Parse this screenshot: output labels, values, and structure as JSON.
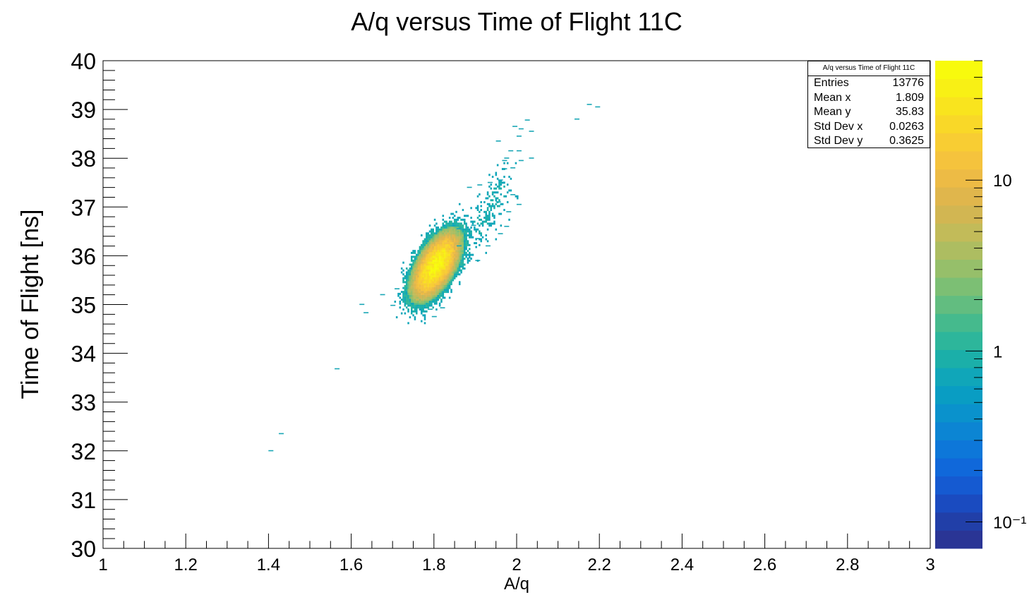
{
  "chart_data": {
    "type": "heatmap",
    "title": "A/q versus Time of Flight 11C",
    "xlabel": "A/q",
    "ylabel": "Time of Flight [ns]",
    "xlim": [
      1,
      3
    ],
    "ylim": [
      30,
      40
    ],
    "x_ticks": [
      "1",
      "1.2",
      "1.4",
      "1.6",
      "1.8",
      "2",
      "2.2",
      "2.4",
      "2.6",
      "2.8",
      "3"
    ],
    "y_ticks": [
      "30",
      "31",
      "32",
      "33",
      "34",
      "35",
      "36",
      "37",
      "38",
      "39",
      "40"
    ],
    "colorbar": {
      "scale": "log",
      "range": [
        0.07,
        50
      ],
      "tick_labels": [
        "10",
        "1",
        "10⁻¹"
      ],
      "tick_values": [
        10,
        1,
        0.1
      ],
      "palette": [
        "#2a3595",
        "#213fa8",
        "#1a4bc0",
        "#155ad1",
        "#1068da",
        "#0d77d9",
        "#0c85d3",
        "#0a92cc",
        "#099dc3",
        "#10a6b9",
        "#1bafa9",
        "#2db69b",
        "#45ba8d",
        "#62bd80",
        "#7cbf74",
        "#96bf6a",
        "#adbd61",
        "#c2bb59",
        "#d2b652",
        "#e0b64c",
        "#edbb45",
        "#f5c33d",
        "#f8cd33",
        "#f9d828",
        "#f9e41e",
        "#f8f015",
        "#f8fa0d"
      ]
    },
    "clusters": [
      {
        "x": 1.805,
        "y": 35.8,
        "sx": 0.028,
        "sy": 0.33,
        "rho": 0.6,
        "peak": 40
      },
      {
        "x": 1.94,
        "y": 37.0,
        "sx": 0.03,
        "sy": 0.45,
        "rho": 0.7,
        "peak": 0.6
      }
    ],
    "outliers": [
      {
        "x": 1.405,
        "y": 32.0
      },
      {
        "x": 1.43,
        "y": 32.35
      },
      {
        "x": 1.565,
        "y": 33.68
      },
      {
        "x": 1.625,
        "y": 35.0
      },
      {
        "x": 1.635,
        "y": 34.83
      },
      {
        "x": 1.7,
        "y": 34.98
      },
      {
        "x": 1.675,
        "y": 35.2
      },
      {
        "x": 1.71,
        "y": 35.32
      },
      {
        "x": 1.79,
        "y": 34.9
      },
      {
        "x": 1.8,
        "y": 34.75
      },
      {
        "x": 1.82,
        "y": 34.93
      },
      {
        "x": 1.86,
        "y": 36.55
      },
      {
        "x": 1.895,
        "y": 36.62
      },
      {
        "x": 1.885,
        "y": 37.4
      },
      {
        "x": 1.91,
        "y": 37.45
      },
      {
        "x": 1.935,
        "y": 37.5
      },
      {
        "x": 1.96,
        "y": 37.55
      },
      {
        "x": 1.97,
        "y": 37.78
      },
      {
        "x": 1.99,
        "y": 37.8
      },
      {
        "x": 1.97,
        "y": 37.95
      },
      {
        "x": 1.975,
        "y": 38.0
      },
      {
        "x": 2.01,
        "y": 37.95
      },
      {
        "x": 2.035,
        "y": 38.0
      },
      {
        "x": 1.985,
        "y": 38.15
      },
      {
        "x": 1.955,
        "y": 38.35
      },
      {
        "x": 2.005,
        "y": 38.15
      },
      {
        "x": 2.005,
        "y": 38.45
      },
      {
        "x": 2.01,
        "y": 38.6
      },
      {
        "x": 2.035,
        "y": 38.55
      },
      {
        "x": 1.995,
        "y": 38.65
      },
      {
        "x": 2.025,
        "y": 38.78
      },
      {
        "x": 2.145,
        "y": 38.8
      },
      {
        "x": 2.175,
        "y": 39.1
      },
      {
        "x": 2.195,
        "y": 39.05
      },
      {
        "x": 1.905,
        "y": 36.35
      },
      {
        "x": 1.93,
        "y": 36.2
      },
      {
        "x": 1.96,
        "y": 36.45
      },
      {
        "x": 1.975,
        "y": 36.6
      },
      {
        "x": 1.98,
        "y": 36.9
      },
      {
        "x": 1.955,
        "y": 37.1
      },
      {
        "x": 1.99,
        "y": 37.25
      },
      {
        "x": 2.005,
        "y": 37.05
      },
      {
        "x": 1.86,
        "y": 36.2
      },
      {
        "x": 1.885,
        "y": 35.95
      },
      {
        "x": 1.905,
        "y": 35.9
      }
    ]
  },
  "stats": {
    "title": "A/q versus Time of Flight 11C",
    "rows": [
      {
        "label": "Entries",
        "value": "13776"
      },
      {
        "label": "Mean x",
        "value": "1.809"
      },
      {
        "label": "Mean y",
        "value": "35.83"
      },
      {
        "label": "Std Dev x",
        "value": "0.0263"
      },
      {
        "label": "Std Dev y",
        "value": "0.3625"
      }
    ]
  }
}
